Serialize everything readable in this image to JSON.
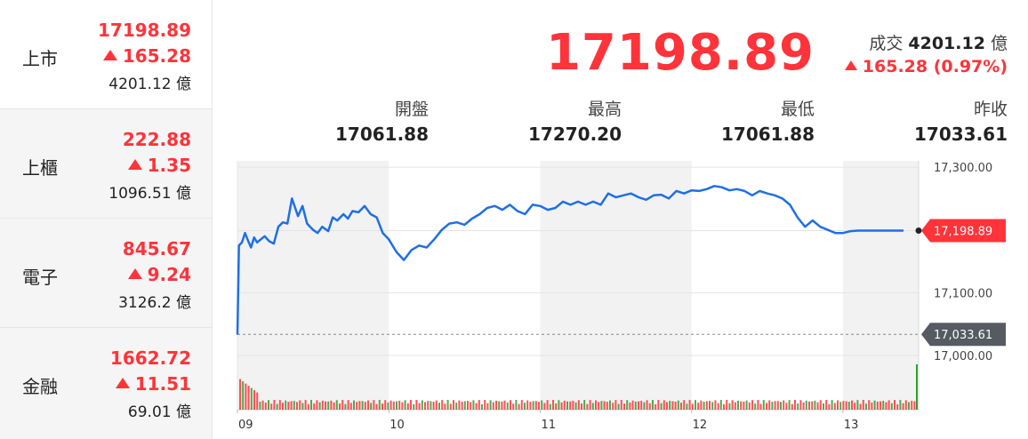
{
  "markets": [
    {
      "name": "上市",
      "price": "17198.89",
      "change": "165.28",
      "volume": "4201.12 億"
    },
    {
      "name": "上櫃",
      "price": "222.88",
      "change": "1.35",
      "volume": "1096.51 億"
    },
    {
      "name": "電子",
      "price": "845.67",
      "change": "9.24",
      "volume": "3126.2 億"
    },
    {
      "name": "金融",
      "price": "1662.72",
      "change": "11.51",
      "volume": "69.01 億"
    }
  ],
  "summary": {
    "price": "17198.89",
    "turnover_label": "成交",
    "turnover_value": "4201.12",
    "turnover_unit": "億",
    "change": "165.28 (0.97%)"
  },
  "stats": [
    {
      "label": "開盤",
      "value": "17061.88"
    },
    {
      "label": "最高",
      "value": "17270.20"
    },
    {
      "label": "最低",
      "value": "17061.88"
    },
    {
      "label": "昨收",
      "value": "17033.61"
    }
  ],
  "colors": {
    "up": "#ff333a",
    "line": "#1f6fe5",
    "down_bar": "#2ca02c",
    "prev_tag": "#555b61"
  },
  "chart_data": {
    "type": "line",
    "y_ticks": [
      "17,300.00",
      "17,100.00",
      "17,000.00"
    ],
    "y_tick_values": [
      17300,
      17100,
      17000
    ],
    "ylim": [
      16990,
      17310
    ],
    "x_ticks": [
      "09",
      "10",
      "11",
      "12",
      "13"
    ],
    "x_tick_hours": [
      9,
      10,
      11,
      12,
      13
    ],
    "xlim_hours": [
      9,
      13.5
    ],
    "current_label": "17,198.89",
    "current_value": 17198.89,
    "prev_close_label": "17,033.61",
    "prev_close_value": 17033.61,
    "series": [
      {
        "x": [
          9.0,
          9.01,
          9.03,
          9.05,
          9.07,
          9.09,
          9.11,
          9.13,
          9.15,
          9.18,
          9.21,
          9.24,
          9.27,
          9.3,
          9.33,
          9.36,
          9.4,
          9.43,
          9.46,
          9.5,
          9.53,
          9.56,
          9.6,
          9.63,
          9.66,
          9.7,
          9.73,
          9.76,
          9.8,
          9.84,
          9.88,
          9.92,
          9.96,
          10.0,
          10.05,
          10.1,
          10.15,
          10.2,
          10.25,
          10.3,
          10.35,
          10.4,
          10.45,
          10.5,
          10.55,
          10.6,
          10.65,
          10.7,
          10.75,
          10.8,
          10.85,
          10.9,
          10.95,
          11.0,
          11.05,
          11.1,
          11.15,
          11.2,
          11.25,
          11.3,
          11.35,
          11.4,
          11.45,
          11.5,
          11.55,
          11.6,
          11.65,
          11.7,
          11.75,
          11.8,
          11.85,
          11.9,
          11.95,
          12.0,
          12.05,
          12.1,
          12.15,
          12.2,
          12.25,
          12.3,
          12.35,
          12.4,
          12.45,
          12.5,
          12.55,
          12.6,
          12.65,
          12.7,
          12.75,
          12.8,
          12.85,
          12.9,
          12.95,
          13.0,
          13.05,
          13.1,
          13.15,
          13.2,
          13.25,
          13.3,
          13.35,
          13.4
        ],
        "y": [
          17033,
          17175,
          17180,
          17195,
          17183,
          17172,
          17188,
          17180,
          17184,
          17190,
          17182,
          17178,
          17205,
          17212,
          17210,
          17250,
          17222,
          17238,
          17210,
          17200,
          17195,
          17205,
          17198,
          17220,
          17215,
          17225,
          17218,
          17230,
          17228,
          17238,
          17225,
          17220,
          17195,
          17185,
          17165,
          17152,
          17168,
          17175,
          17172,
          17185,
          17200,
          17210,
          17212,
          17208,
          17218,
          17225,
          17235,
          17238,
          17232,
          17240,
          17230,
          17225,
          17240,
          17238,
          17232,
          17235,
          17245,
          17240,
          17245,
          17240,
          17245,
          17240,
          17258,
          17252,
          17255,
          17258,
          17252,
          17248,
          17255,
          17256,
          17250,
          17262,
          17258,
          17263,
          17262,
          17265,
          17270,
          17268,
          17263,
          17265,
          17262,
          17255,
          17262,
          17258,
          17255,
          17250,
          17240,
          17220,
          17205,
          17215,
          17205,
          17200,
          17195,
          17195,
          17198,
          17198.89,
          17198.89,
          17198.89,
          17198.89,
          17198.89,
          17198.89,
          17198.89
        ]
      }
    ]
  }
}
